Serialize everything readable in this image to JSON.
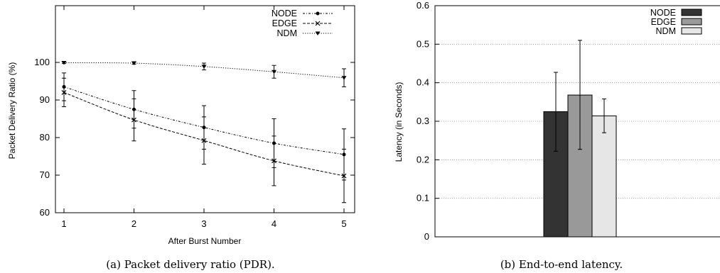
{
  "chart_data": [
    {
      "type": "line",
      "caption": "(a) Packet delivery ratio (PDR).",
      "xlabel": "After Burst Number",
      "ylabel": "Packet Delivery Ratio (%)",
      "x": [
        1,
        2,
        3,
        4,
        5
      ],
      "xlim": [
        1,
        5
      ],
      "ylim": [
        60,
        100
      ],
      "yticks": [
        60,
        70,
        80,
        90,
        100
      ],
      "grid": false,
      "legend_position": "top-right",
      "series": [
        {
          "name": "NODE",
          "marker": "dot",
          "dash": "dash-dot",
          "values": [
            93.5,
            87.5,
            82.7,
            78.5,
            75.5
          ],
          "err": [
            3.7,
            5.0,
            5.8,
            6.5,
            6.8
          ],
          "color": "#000000"
        },
        {
          "name": "EDGE",
          "marker": "x",
          "dash": "dashed",
          "values": [
            92.0,
            84.7,
            79.2,
            73.8,
            69.8
          ],
          "err": [
            3.8,
            5.6,
            6.3,
            6.6,
            7.1
          ],
          "color": "#000000"
        },
        {
          "name": "NDM",
          "marker": "triangle",
          "dash": "dotted",
          "values": [
            99.9,
            99.8,
            98.9,
            97.5,
            95.9
          ],
          "err": [
            0.2,
            0.3,
            0.9,
            1.7,
            2.4
          ],
          "color": "#000000"
        }
      ]
    },
    {
      "type": "bar",
      "caption": "(b) End-to-end latency.",
      "xlabel": "",
      "ylabel": "Latency (in Seconds)",
      "ylim": [
        0,
        0.6
      ],
      "yticks": [
        "0",
        "0.1",
        "0.2",
        "0.3",
        "0.4",
        "0.5",
        "0.6"
      ],
      "grid": true,
      "legend_position": "top-right",
      "series": [
        {
          "name": "NODE",
          "value": 0.325,
          "err": [
            0.222,
            0.427
          ],
          "color": "#333333"
        },
        {
          "name": "EDGE",
          "value": 0.368,
          "err": [
            0.227,
            0.51
          ],
          "color": "#999999"
        },
        {
          "name": "NDM",
          "value": 0.314,
          "err": [
            0.27,
            0.358
          ],
          "color": "#e6e6e6"
        }
      ]
    }
  ]
}
